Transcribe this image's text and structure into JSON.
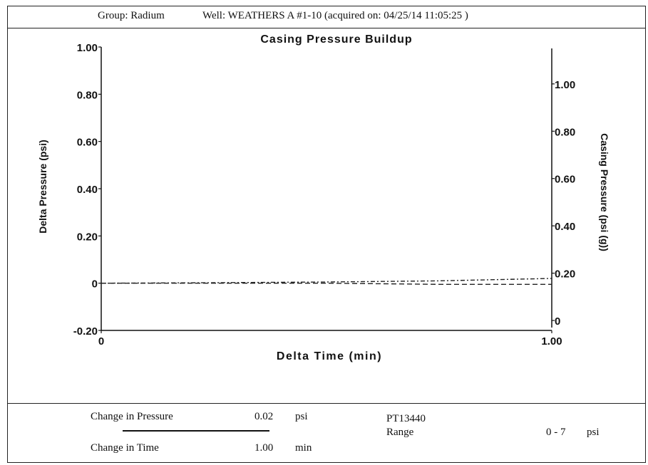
{
  "header": {
    "group": "Group: Radium",
    "well": "Well: WEATHERS A #1-10 (acquired on: 04/25/14 11:05:25 )"
  },
  "chart_data": {
    "type": "line",
    "title": "Casing Pressure Buildup",
    "xlabel": "Delta Time (min)",
    "ylabel": "Delta Pressure (psi)",
    "y2label": "Casing Pressure (psi (g))",
    "xlim": [
      0,
      1.0
    ],
    "ylim": [
      -0.2,
      1.0
    ],
    "y2lim": [
      -0.03,
      1.15
    ],
    "x_ticks": [
      "0",
      "1.00"
    ],
    "y_ticks": [
      {
        "value": 1.0,
        "label": "1.00"
      },
      {
        "value": 0.8,
        "label": "0.80"
      },
      {
        "value": 0.6,
        "label": "0.60"
      },
      {
        "value": 0.4,
        "label": "0.40"
      },
      {
        "value": 0.2,
        "label": "0.20"
      },
      {
        "value": 0,
        "label": "0"
      },
      {
        "value": -0.2,
        "label": "-0.20"
      }
    ],
    "y2_ticks": [
      {
        "value": 1.0,
        "label": "1.00"
      },
      {
        "value": 0.8,
        "label": "0.80"
      },
      {
        "value": 0.6,
        "label": "0.60"
      },
      {
        "value": 0.4,
        "label": "0.40"
      },
      {
        "value": 0.2,
        "label": "0.20"
      },
      {
        "value": 0,
        "label": "0"
      }
    ],
    "series": [
      {
        "axis": "left",
        "style": "dashed",
        "x": [
          0,
          0.25,
          0.5,
          0.75,
          1.0
        ],
        "y": [
          0.0,
          0.0,
          0.0,
          -0.005,
          -0.005
        ]
      },
      {
        "axis": "left",
        "style": "dash-dot",
        "x": [
          0,
          0.25,
          0.5,
          0.75,
          1.0
        ],
        "y": [
          0.0,
          0.002,
          0.005,
          0.01,
          0.02
        ]
      }
    ]
  },
  "footer": {
    "change_pressure_label": "Change in Pressure",
    "change_pressure_value": "0.02",
    "change_pressure_unit": "psi",
    "change_time_label": "Change in Time",
    "change_time_value": "1.00",
    "change_time_unit": "min",
    "sensor_id": "PT13440",
    "range_label": "Range",
    "range_value": "0 - 7",
    "range_unit": "psi"
  }
}
